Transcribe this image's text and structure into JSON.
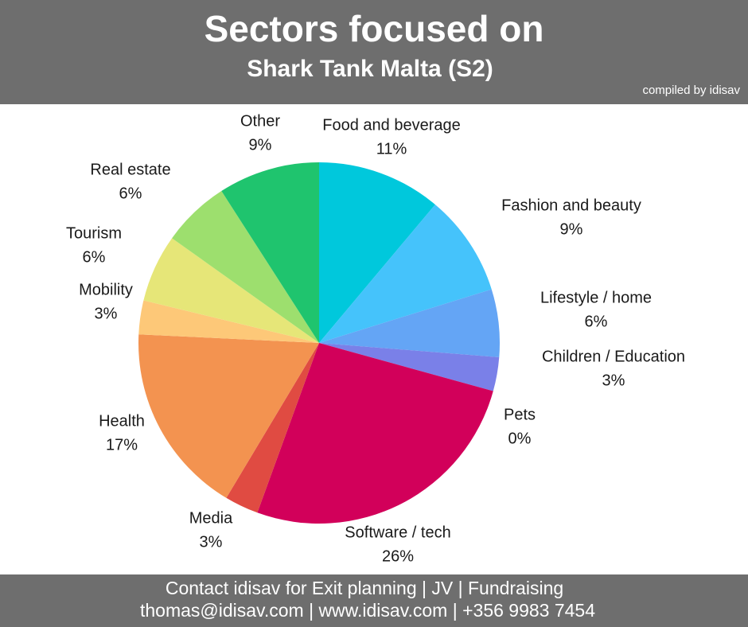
{
  "chart_data": {
    "type": "pie",
    "title": "Sectors focused on",
    "subtitle": "Shark Tank Malta (S2)",
    "categories": [
      "Food and beverage",
      "Fashion and beauty",
      "Lifestyle / home",
      "Children / Education",
      "Pets",
      "Software / tech",
      "Media",
      "Health",
      "Mobility",
      "Tourism",
      "Real estate",
      "Other"
    ],
    "values": [
      11,
      9,
      6,
      3,
      0,
      26,
      3,
      17,
      3,
      6,
      6,
      9
    ],
    "value_labels": [
      "11%",
      "9%",
      "6%",
      "3%",
      "0%",
      "26%",
      "3%",
      "17%",
      "3%",
      "6%",
      "6%",
      "9%"
    ],
    "colors": [
      "#00c8dc",
      "#45c3fb",
      "#64a5f5",
      "#7a80e8",
      "#9b55d0",
      "#d2005a",
      "#e04b42",
      "#f39350",
      "#fdc878",
      "#e6e678",
      "#9ddf6e",
      "#1fc46e"
    ]
  },
  "credit": "compiled by idisav",
  "footer": [
    "Contact idisav for Exit planning | JV | Fundraising",
    "thomas@idisav.com | www.idisav.com | +356 9983 7454"
  ]
}
